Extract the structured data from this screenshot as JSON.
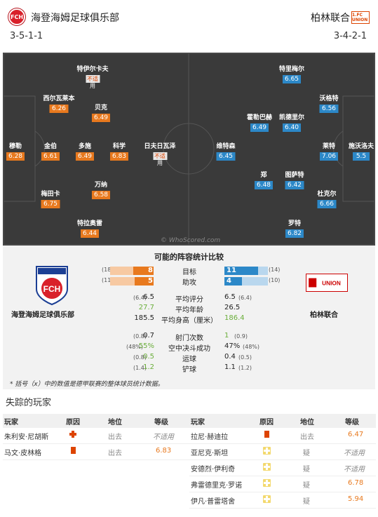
{
  "header": {
    "home_name": "海登海姆足球俱乐部",
    "home_formation": "3-5-1-1",
    "home_crest": "FCH",
    "away_name": "柏林联合",
    "away_formation": "3-4-2-1",
    "away_crest": "1.FC UNION"
  },
  "pitch": {
    "watermark": "© WhoScored.com",
    "home_players": [
      {
        "name": "穆勒",
        "rating": "6.28"
      },
      {
        "name": "西尔瓦莱本",
        "rating": "6.26"
      },
      {
        "name": "金伯",
        "rating": "6.61"
      },
      {
        "name": "梅田卡",
        "rating": "6.75"
      },
      {
        "name": "特伊尔卡夫",
        "rating": "",
        "na": "不适",
        "na2": "用"
      },
      {
        "name": "贝克",
        "rating": "6.49"
      },
      {
        "name": "多施",
        "rating": "6.49"
      },
      {
        "name": "万纳",
        "rating": "6.58"
      },
      {
        "name": "特拉奥雷",
        "rating": "6.44"
      },
      {
        "name": "科学",
        "rating": "6.83"
      },
      {
        "name": "日夫日瓦泽",
        "rating": "",
        "na": "不适",
        "na2": "用"
      }
    ],
    "away_players": [
      {
        "name": "施沃洛夫",
        "rating": "5.5"
      },
      {
        "name": "沃格特",
        "rating": "6.56"
      },
      {
        "name": "莱特",
        "rating": "7.06"
      },
      {
        "name": "杜克尔",
        "rating": "6.66"
      },
      {
        "name": "特里梅尔",
        "rating": "6.65"
      },
      {
        "name": "霍勒巴赫",
        "rating": "6.49"
      },
      {
        "name": "凯德里尔",
        "rating": "6.40"
      },
      {
        "name": "郑",
        "rating": "6.48"
      },
      {
        "name": "图萨特",
        "rating": "6.42"
      },
      {
        "name": "罗特",
        "rating": "6.82"
      },
      {
        "name": "维特森",
        "rating": "6.45"
      }
    ]
  },
  "comparison": {
    "title": "可能的阵容统计比较",
    "home_team": "海登海姆足球俱乐部",
    "away_team": "柏林联合",
    "bars": [
      {
        "label": "目标",
        "home": 8,
        "home_total": "(18)",
        "away": 11,
        "away_total": "(14)"
      },
      {
        "label": "助攻",
        "home": 5,
        "home_total": "(11)",
        "away": 4,
        "away_total": "(10)"
      }
    ],
    "stats": [
      {
        "label": "平均评分",
        "home_paren": "(6.4)",
        "home": "6.5",
        "away": "6.5",
        "away_paren": "(6.4)",
        "home_green": false,
        "away_green": false
      },
      {
        "label": "平均年龄",
        "home_paren": "",
        "home": "27.7",
        "away": "26.5",
        "away_paren": "",
        "home_green": true,
        "away_green": false
      },
      {
        "label": "平均身高（厘米）",
        "home_paren": "",
        "home": "185.5",
        "away": "186.4",
        "away_paren": "",
        "home_green": false,
        "away_green": true
      },
      {
        "label": "射门次数",
        "home_paren": "(0.8)",
        "home": "0.7",
        "away": "1",
        "away_paren": "(0.9)",
        "home_green": false,
        "away_green": true
      },
      {
        "label": "空中决斗成功",
        "home_paren": "(48%)",
        "home": "55%",
        "away": "47%",
        "away_paren": "(48%)",
        "home_green": true,
        "away_green": false
      },
      {
        "label": "运球",
        "home_paren": "(0.8)",
        "home": "0.5",
        "away": "0.4",
        "away_paren": "(0.5)",
        "home_green": true,
        "away_green": false
      },
      {
        "label": "铲球",
        "home_paren": "(1.4)",
        "home": "1.2",
        "away": "1.1",
        "away_paren": "(1.2)",
        "home_green": true,
        "away_green": false
      }
    ],
    "footnote": "* 括号（x）中的数值是德甲联赛的整体球员统计数据。"
  },
  "missing": {
    "title": "失踪的玩家",
    "columns": {
      "player": "玩家",
      "reason": "原因",
      "position": "地位",
      "rating": "等级"
    },
    "home": [
      {
        "player": "朱利安·尼胡斯",
        "reason": "injury",
        "position": "出去",
        "rating": "不适用"
      },
      {
        "player": "马文·皮林格",
        "reason": "red-card",
        "position": "出去",
        "rating": "6.83"
      }
    ],
    "away": [
      {
        "player": "拉尼·赫迪拉",
        "reason": "red-card",
        "position": "出去",
        "rating": "6.47"
      },
      {
        "player": "亚尼克·斯坦",
        "reason": "doubt",
        "position": "疑",
        "rating": "不适用"
      },
      {
        "player": "安德烈·伊利奇",
        "reason": "doubt",
        "position": "疑",
        "rating": "不适用"
      },
      {
        "player": "弗雷德里克·罗诺",
        "reason": "doubt",
        "position": "疑",
        "rating": "6.78"
      },
      {
        "player": "伊凡·普雷塔舍",
        "reason": "doubt",
        "position": "疑",
        "rating": "5.94"
      }
    ]
  },
  "colors": {
    "home_rating": "#e8791e",
    "away_rating": "#2c88c8",
    "pitch": "#3a3a3a",
    "better_stat": "#6aae3a"
  }
}
